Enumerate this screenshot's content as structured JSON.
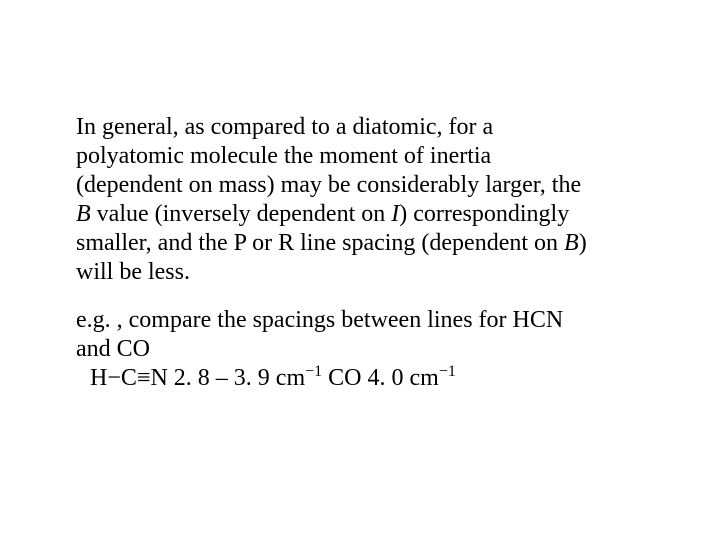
{
  "text_color": "#000000",
  "background_color": "#ffffff",
  "font_family": "Times New Roman",
  "font_size_pt": 24,
  "paragraph1": {
    "t1": "In general, as compared to a diatomic, for a polyatomic molecule the moment of inertia (dependent on mass) may be considerably larger, the ",
    "B1": "B",
    "t2": " value (inversely dependent on ",
    "I": "I",
    "t3": ") correspondingly smaller, and the P or R line spacing (dependent on ",
    "B2": "B",
    "t4": ") will be less."
  },
  "paragraph2": "e.g. , compare the spacings between lines for HCN and CO",
  "paragraph3": {
    "hcn_formula_pre": "H",
    "hcn_minus": "−",
    "hcn_c": "C",
    "hcn_triple": "≡",
    "hcn_n": "N",
    "hcn_range": "   2. 8 – 3. 9 cm",
    "exp1_minus": "−",
    "exp1_num": "1",
    "spacer": "     ",
    "co_label": "CO  4. 0 cm",
    "exp2_minus": "−",
    "exp2_num": "1"
  }
}
